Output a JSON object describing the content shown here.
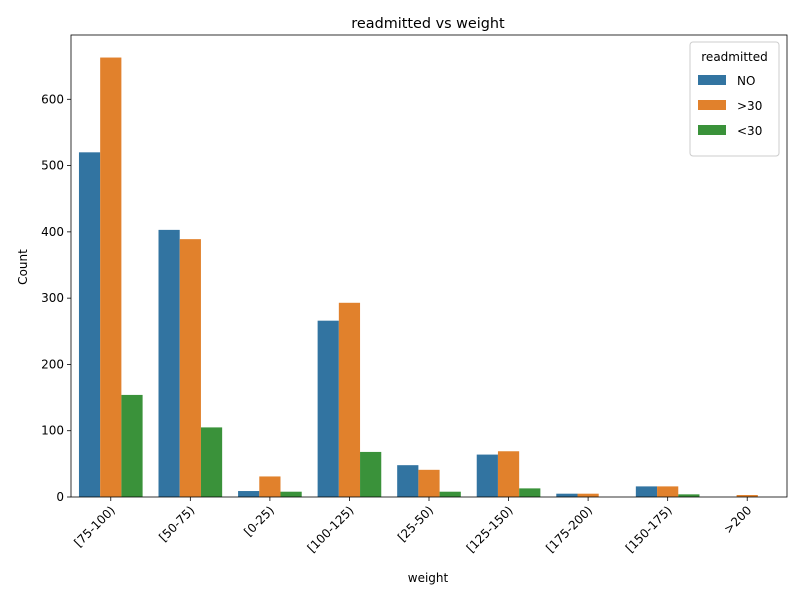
{
  "chart_data": {
    "type": "bar",
    "title": "readmitted vs weight",
    "xlabel": "weight",
    "ylabel": "Count",
    "categories": [
      "[75-100)",
      "[50-75)",
      "[0-25)",
      "[100-125)",
      "[25-50)",
      "[125-150)",
      "[175-200)",
      "[150-175)",
      ">200"
    ],
    "series": [
      {
        "name": "NO",
        "color": "#3274a1",
        "values": [
          520,
          403,
          9,
          266,
          48,
          64,
          5,
          16,
          0
        ]
      },
      {
        "name": ">30",
        "color": "#e1812c",
        "values": [
          663,
          389,
          31,
          293,
          41,
          69,
          5,
          16,
          3
        ]
      },
      {
        "name": "<30",
        "color": "#3a923a",
        "values": [
          154,
          105,
          8,
          68,
          8,
          13,
          0,
          4,
          0
        ]
      }
    ],
    "ylim": [
      0,
      697
    ],
    "yticks": [
      0,
      100,
      200,
      300,
      400,
      500,
      600
    ],
    "legend": {
      "title": "readmitted",
      "position": "top-right"
    },
    "grid": false
  }
}
